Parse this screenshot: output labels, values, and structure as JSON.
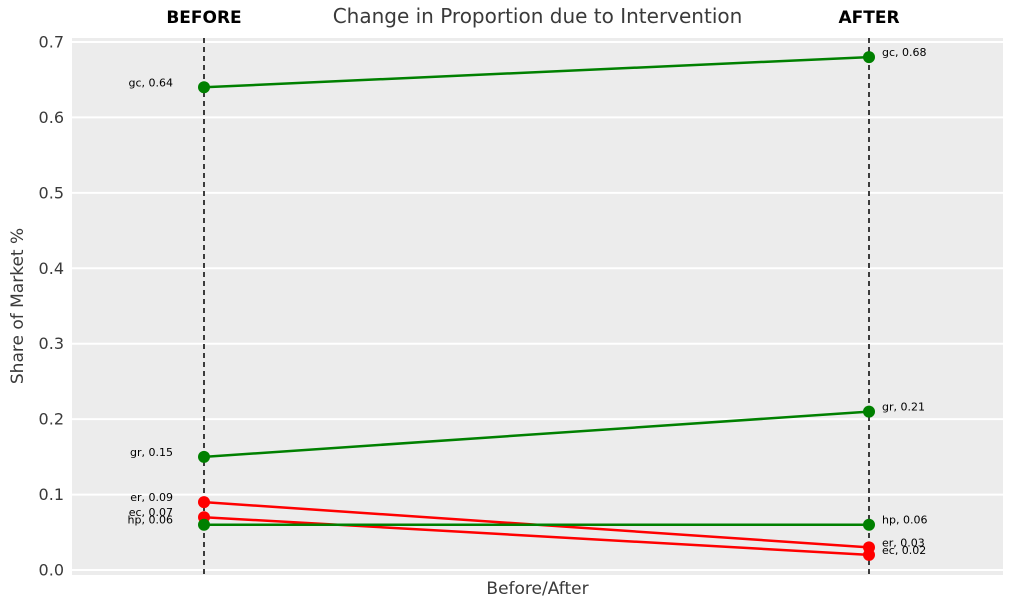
{
  "chart_data": {
    "type": "line",
    "subtype": "slope-before-after",
    "title": "Change in Proportion due to Intervention",
    "xlabel": "Before/After",
    "ylabel": "Share of Market %",
    "columns": [
      "BEFORE",
      "AFTER"
    ],
    "ylim": [
      0.0,
      0.7
    ],
    "yticks": [
      "0.0",
      "0.1",
      "0.2",
      "0.3",
      "0.4",
      "0.5",
      "0.6",
      "0.7"
    ],
    "grid": true,
    "plot_bg": "#ececec",
    "grid_color": "#ffffff",
    "guide_color": "#000000",
    "increase_color": "#008000",
    "decrease_color": "#ff0000",
    "text_color": "#3a3a3a",
    "annotation_color": "#000000",
    "series": [
      {
        "name": "gc",
        "before": 0.64,
        "after": 0.68,
        "color": "#008000",
        "label_before": "gc, 0.64",
        "label_after": "gc, 0.68"
      },
      {
        "name": "gr",
        "before": 0.15,
        "after": 0.21,
        "color": "#008000",
        "label_before": "gr, 0.15",
        "label_after": "gr, 0.21"
      },
      {
        "name": "er",
        "before": 0.09,
        "after": 0.03,
        "color": "#ff0000",
        "label_before": "er, 0.09",
        "label_after": "er, 0.03"
      },
      {
        "name": "ec",
        "before": 0.07,
        "after": 0.02,
        "color": "#ff0000",
        "label_before": "ec, 0.07",
        "label_after": "ec, 0.02"
      },
      {
        "name": "hp",
        "before": 0.06,
        "after": 0.06,
        "color": "#008000",
        "label_before": "hp, 0.06",
        "label_after": "hp, 0.06"
      }
    ]
  }
}
